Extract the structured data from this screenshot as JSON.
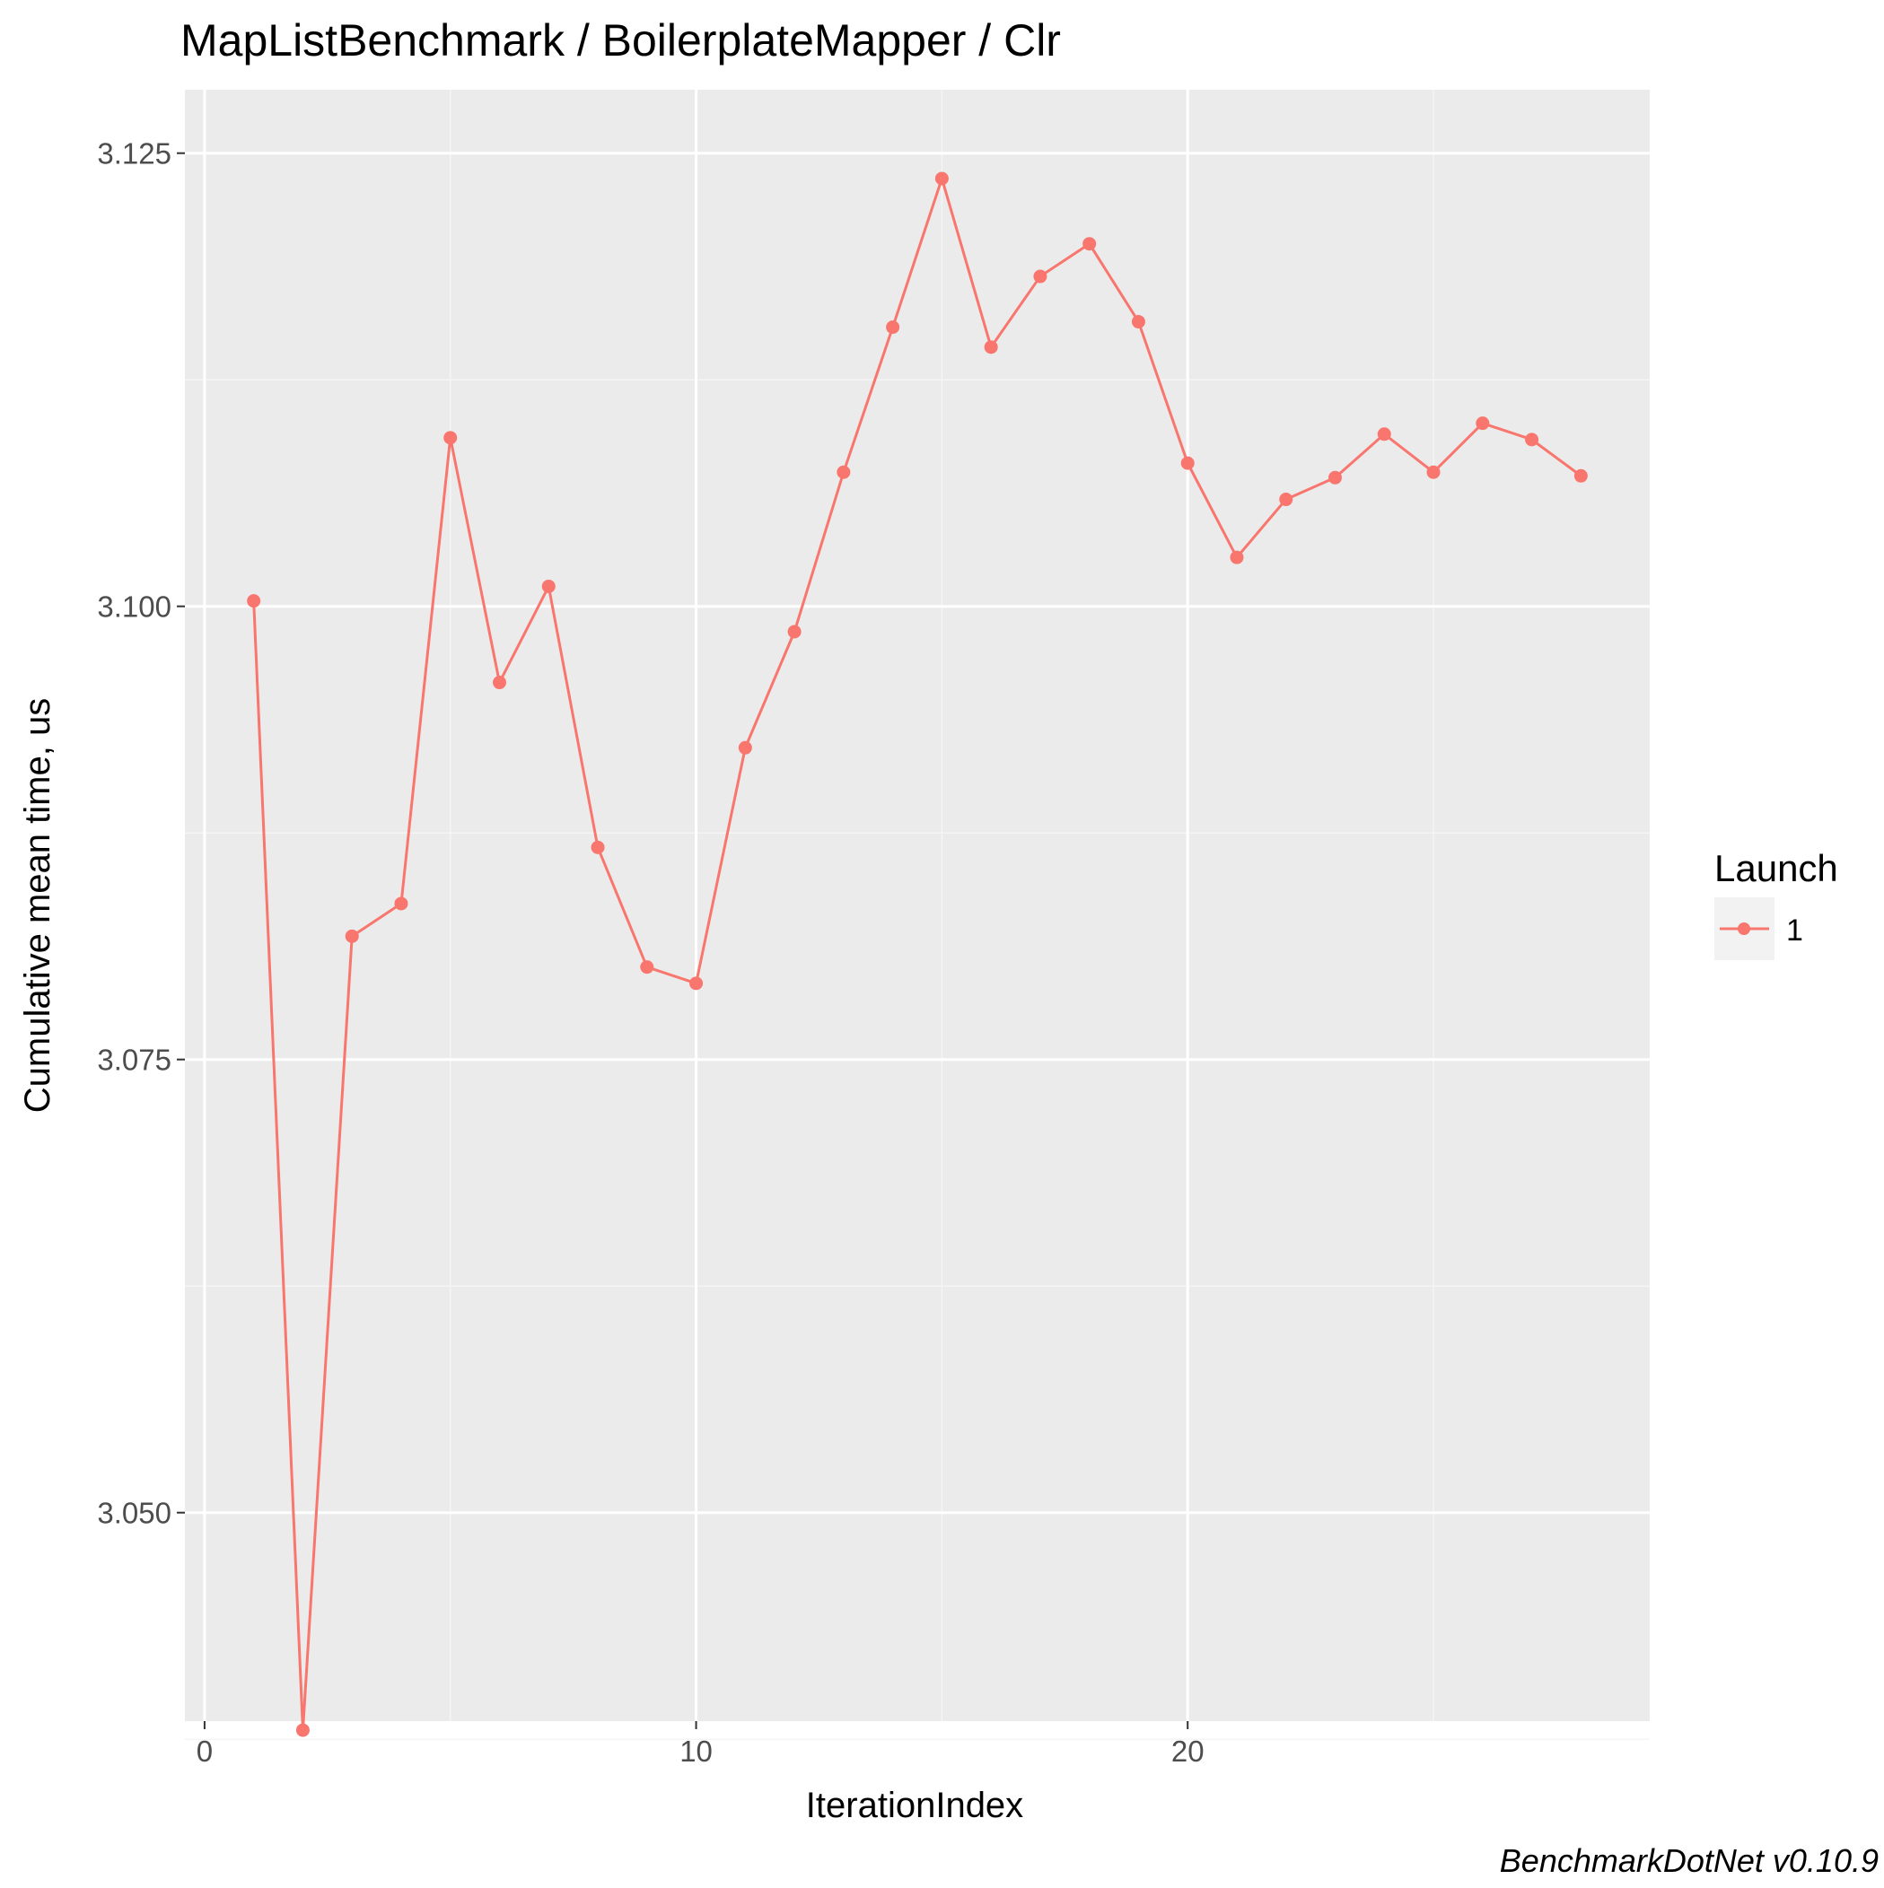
{
  "chart_data": {
    "type": "line",
    "title": "MapListBenchmark / BoilerplateMapper / Clr",
    "xlabel": "IterationIndex",
    "ylabel": "Cumulative mean time, us",
    "xlim": [
      -0.4,
      29.4
    ],
    "ylim": [
      3.0385,
      3.1285
    ],
    "x_major_ticks": [
      0,
      10,
      20
    ],
    "x_tick_labels": [
      "0",
      "10",
      "20"
    ],
    "x_minor_ticks": [
      5,
      15,
      25
    ],
    "y_major_ticks": [
      3.05,
      3.075,
      3.1,
      3.125
    ],
    "y_tick_labels": [
      "3.050",
      "3.075",
      "3.100",
      "3.125"
    ],
    "y_minor_ticks": [
      3.0375,
      3.0625,
      3.0875,
      3.1125
    ],
    "grid": true,
    "legend_position": "right",
    "legend_title": "Launch",
    "series": [
      {
        "name": "1",
        "color": "#f8766d",
        "x": [
          1,
          2,
          3,
          4,
          5,
          6,
          7,
          8,
          9,
          10,
          11,
          12,
          13,
          14,
          15,
          16,
          17,
          18,
          19,
          20,
          21,
          22,
          23,
          24,
          25,
          26,
          27,
          28
        ],
        "values": [
          3.1003,
          3.038,
          3.0818,
          3.0836,
          3.1093,
          3.0958,
          3.1011,
          3.0867,
          3.0801,
          3.0792,
          3.0922,
          3.0986,
          3.1074,
          3.1154,
          3.1236,
          3.1143,
          3.1182,
          3.12,
          3.1157,
          3.1079,
          3.1027,
          3.1059,
          3.1071,
          3.1095,
          3.1074,
          3.1101,
          3.1092,
          3.1072
        ]
      }
    ],
    "caption": "BenchmarkDotNet v0.10.9"
  },
  "colors": {
    "panel_background": "#ebebeb",
    "grid_major": "#ffffff",
    "grid_minor": "#f5f5f5",
    "tick_mark": "#333333",
    "legend_key_background": "#f2f2f2"
  }
}
